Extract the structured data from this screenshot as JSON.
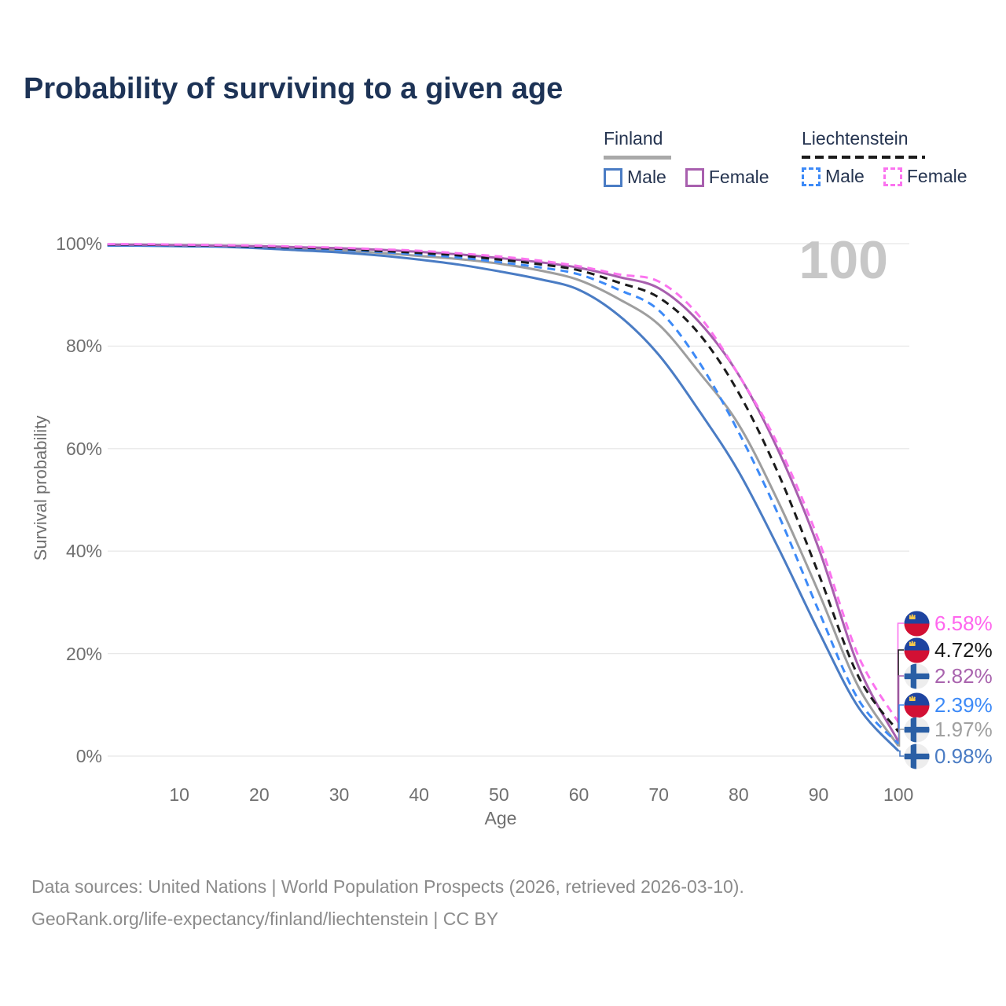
{
  "title": "Probability of surviving to a given age",
  "watermark": "100",
  "legend": {
    "groups": [
      {
        "id": "finland",
        "label": "Finland",
        "line_style": "solid",
        "underline_color": "#a9a9a9",
        "items": [
          {
            "label": "Male",
            "color": "#4a7cc4"
          },
          {
            "label": "Female",
            "color": "#a85fae"
          }
        ]
      },
      {
        "id": "liechtenstein",
        "label": "Liechtenstein",
        "line_style": "dashed",
        "underline_color": "#1b1b1b",
        "items": [
          {
            "label": "Male",
            "color": "#3d8af7"
          },
          {
            "label": "Female",
            "color": "#fb73ef"
          }
        ]
      }
    ]
  },
  "axes": {
    "x": {
      "label": "Age",
      "ticks": [
        {
          "label": "10",
          "value": 10
        },
        {
          "label": "20",
          "value": 20
        },
        {
          "label": "30",
          "value": 30
        },
        {
          "label": "40",
          "value": 40
        },
        {
          "label": "50",
          "value": 50
        },
        {
          "label": "60",
          "value": 60
        },
        {
          "label": "70",
          "value": 70
        },
        {
          "label": "80",
          "value": 80
        },
        {
          "label": "90",
          "value": 90
        },
        {
          "label": "100",
          "value": 100
        }
      ]
    },
    "y": {
      "label": "Survival probability",
      "ticks": [
        {
          "label": "100%",
          "value": 100
        },
        {
          "label": "80%",
          "value": 80
        },
        {
          "label": "60%",
          "value": 60
        },
        {
          "label": "40%",
          "value": 40
        },
        {
          "label": "20%",
          "value": 20
        },
        {
          "label": "0%",
          "value": 0
        }
      ]
    }
  },
  "end_labels": [
    {
      "text": "6.58%",
      "color": "#ff66ee",
      "flag": "liechtenstein",
      "series": "liechtenstein_female"
    },
    {
      "text": "4.72%",
      "color": "#1c1c1c",
      "flag": "liechtenstein",
      "series": "liechtenstein_total"
    },
    {
      "text": "2.82%",
      "color": "#a964ae",
      "flag": "finland",
      "series": "finland_female"
    },
    {
      "text": "2.39%",
      "color": "#3d8af7",
      "flag": "liechtenstein",
      "series": "liechtenstein_male"
    },
    {
      "text": "1.97%",
      "color": "#a0a0a0",
      "flag": "finland",
      "series": "finland_total"
    },
    {
      "text": "0.98%",
      "color": "#4a7cc4",
      "flag": "finland",
      "series": "finland_male"
    }
  ],
  "footer": {
    "line1": "Data sources: United Nations | World Population Prospects (2026, retrieved 2026-03-10).",
    "line2": "GeoRank.org/life-expectancy/finland/liechtenstein | CC BY"
  },
  "chart_data": {
    "type": "line",
    "title": "Probability of surviving to a given age",
    "xlabel": "Age",
    "ylabel": "Survival probability",
    "xlim": [
      0,
      100
    ],
    "ylim": [
      0,
      100
    ],
    "grid": "horizontal-only",
    "legend_position": "top-right",
    "x": [
      1,
      5,
      10,
      15,
      20,
      25,
      30,
      35,
      40,
      45,
      50,
      55,
      60,
      65,
      70,
      75,
      80,
      85,
      90,
      95,
      100
    ],
    "series": [
      {
        "key": "finland_total",
        "name": "Finland",
        "color": "#9e9e9e",
        "dash": false,
        "values": [
          99.7,
          99.7,
          99.6,
          99.5,
          99.3,
          99.0,
          98.7,
          98.2,
          97.6,
          97.0,
          96.1,
          94.8,
          92.9,
          89.2,
          84.2,
          75.0,
          64.7,
          49.5,
          32.0,
          13.5,
          1.97
        ]
      },
      {
        "key": "finland_male",
        "name": "Finland Male",
        "color": "#4a7cc4",
        "dash": false,
        "values": [
          99.6,
          99.6,
          99.5,
          99.4,
          99.1,
          98.7,
          98.3,
          97.7,
          96.9,
          95.9,
          94.6,
          93.1,
          91.0,
          86.0,
          78.3,
          67.5,
          55.5,
          40.5,
          24.4,
          9.5,
          0.98
        ]
      },
      {
        "key": "finland_female",
        "name": "Finland Female",
        "color": "#a85fae",
        "dash": false,
        "values": [
          99.8,
          99.8,
          99.7,
          99.6,
          99.5,
          99.3,
          99.1,
          98.8,
          98.4,
          97.9,
          97.2,
          96.4,
          95.3,
          93.5,
          91.3,
          84.8,
          74.4,
          59.5,
          40.6,
          17.5,
          2.82
        ]
      },
      {
        "key": "liechtenstein_male",
        "name": "Liechtenstein Male",
        "color": "#3d8af7",
        "dash": true,
        "values": [
          99.7,
          99.7,
          99.6,
          99.5,
          99.3,
          99.1,
          98.8,
          98.4,
          97.9,
          97.3,
          96.4,
          95.4,
          94.0,
          91.0,
          87.0,
          77.0,
          63.2,
          47.0,
          28.4,
          11.0,
          2.39
        ]
      },
      {
        "key": "liechtenstein_total",
        "name": "Liechtenstein",
        "color": "#1b1b1b",
        "dash": true,
        "values": [
          99.8,
          99.8,
          99.7,
          99.6,
          99.4,
          99.2,
          99.0,
          98.6,
          98.2,
          97.7,
          96.9,
          96.0,
          94.8,
          92.4,
          89.5,
          82.5,
          70.9,
          55.0,
          35.6,
          15.5,
          4.72
        ]
      },
      {
        "key": "liechtenstein_female",
        "name": "Liechtenstein Female",
        "color": "#fb73ef",
        "dash": true,
        "values": [
          99.9,
          99.9,
          99.8,
          99.7,
          99.6,
          99.4,
          99.2,
          98.9,
          98.6,
          98.1,
          97.5,
          96.7,
          95.6,
          94.0,
          92.6,
          86.0,
          74.4,
          60.5,
          42.2,
          19.5,
          6.58
        ]
      }
    ]
  }
}
